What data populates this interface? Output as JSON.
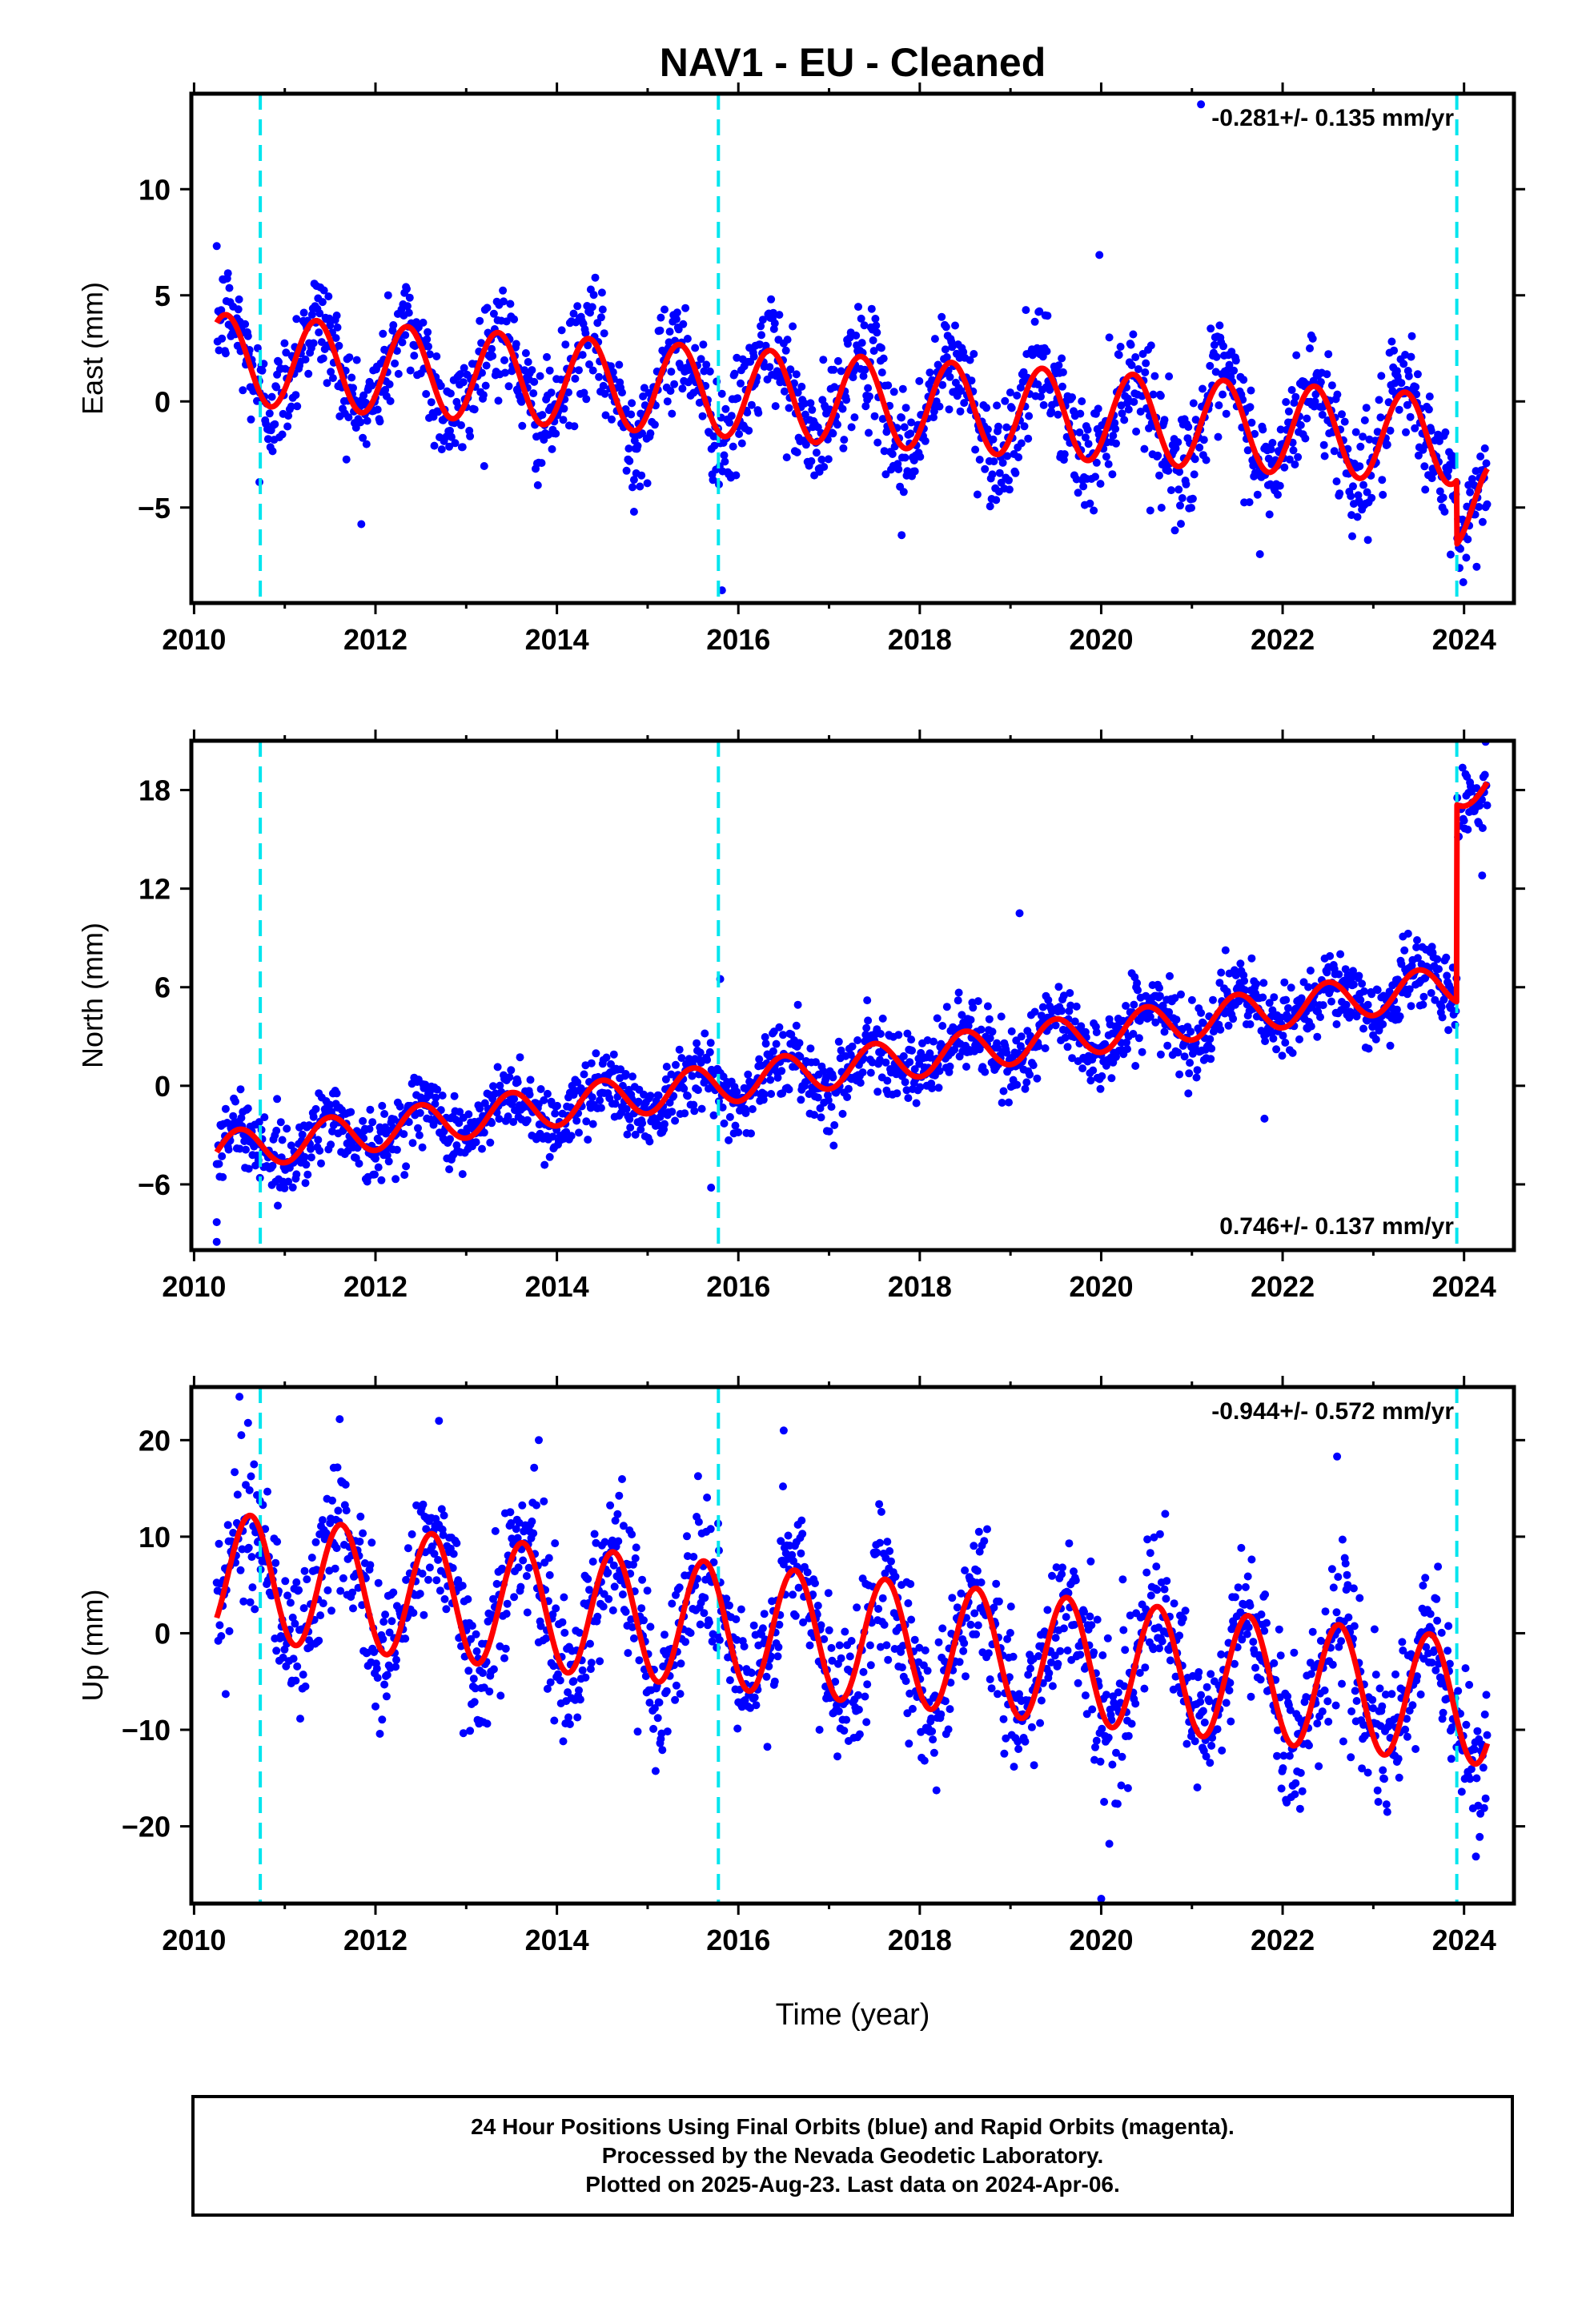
{
  "title": "NAV1  - EU - Cleaned",
  "xlabel": "Time (year)",
  "colors": {
    "data_points": "#0000ff",
    "model_fit": "#ff0000",
    "equipment_change": "#00e5ee",
    "frame": "#000000"
  },
  "chart_data": [
    {
      "type": "scatter",
      "component": "East",
      "ylabel": "East (mm)",
      "rate_label": "-0.281+/- 0.135 mm/yr",
      "rate_label_position": "top-right",
      "xlim": [
        2009.97,
        2024.55
      ],
      "ylim": [
        -9.5,
        14.5
      ],
      "x_ticks": [
        2010,
        2012,
        2014,
        2016,
        2018,
        2020,
        2022,
        2024
      ],
      "y_ticks": [
        -5,
        0,
        5,
        10
      ],
      "y_tick_labels": [
        "−5",
        "0",
        "5",
        "10"
      ],
      "vertical_lines": [
        2010.73,
        2015.78,
        2023.92
      ],
      "data_span": [
        2010.25,
        2024.26
      ],
      "model": {
        "offset": 2.0,
        "trend": -0.281,
        "ref_year": 2010.3,
        "annual_amplitude": 2.1,
        "annual_peak": 0.35,
        "steps": [
          {
            "x": 2023.92,
            "dy": -3.0
          }
        ]
      },
      "scatter_std": 1.3,
      "outliers": [
        [
          2019.98,
          6.9
        ],
        [
          2015.82,
          -8.9
        ],
        [
          2017.8,
          -6.3
        ],
        [
          2014.85,
          -5.2
        ],
        [
          2021.75,
          -7.2
        ],
        [
          2010.72,
          -3.8
        ],
        [
          2021.1,
          14.0
        ]
      ],
      "series": [
        {
          "name": "24 Hour Positions (Final Orbits)",
          "values": "blue daily points"
        },
        {
          "name": "Model fit",
          "values": "red curve"
        }
      ]
    },
    {
      "type": "scatter",
      "component": "North",
      "ylabel": "North (mm)",
      "rate_label": "0.746+/- 0.137 mm/yr",
      "rate_label_position": "bottom-right",
      "xlim": [
        2009.97,
        2024.55
      ],
      "ylim": [
        -10,
        21
      ],
      "x_ticks": [
        2010,
        2012,
        2014,
        2016,
        2018,
        2020,
        2022,
        2024
      ],
      "y_ticks": [
        -6,
        0,
        6,
        12,
        18
      ],
      "y_tick_labels": [
        "−6",
        "0",
        "6",
        "12",
        "18"
      ],
      "vertical_lines": [
        2010.73,
        2015.78,
        2023.92
      ],
      "data_span": [
        2010.25,
        2024.26
      ],
      "model": {
        "offset": -4.0,
        "trend": 0.746,
        "ref_year": 2010.3,
        "annual_amplitude": 1.2,
        "annual_peak": 0.5,
        "steps": [
          {
            "x": 2023.92,
            "dy": 12.0
          }
        ]
      },
      "scatter_std": 1.1,
      "outliers": [
        [
          2019.1,
          10.5
        ],
        [
          2015.8,
          6.5
        ],
        [
          2015.7,
          -6.2
        ],
        [
          2010.25,
          -8.3
        ],
        [
          2010.25,
          -9.5
        ],
        [
          2021.8,
          -2.0
        ],
        [
          2024.2,
          12.8
        ]
      ],
      "series": [
        {
          "name": "24 Hour Positions (Final Orbits)",
          "values": "blue daily points"
        },
        {
          "name": "Model fit",
          "values": "red curve"
        }
      ]
    },
    {
      "type": "scatter",
      "component": "Up",
      "ylabel": "Up (mm)",
      "rate_label": "-0.944+/- 0.572 mm/yr",
      "rate_label_position": "top-right",
      "xlim": [
        2009.97,
        2024.55
      ],
      "ylim": [
        -28,
        25.5
      ],
      "x_ticks": [
        2010,
        2012,
        2014,
        2016,
        2018,
        2020,
        2022,
        2024
      ],
      "y_ticks": [
        -20,
        -10,
        0,
        10,
        20
      ],
      "y_tick_labels": [
        "−20",
        "−10",
        "0",
        "10",
        "20"
      ],
      "vertical_lines": [
        2010.73,
        2015.78,
        2023.92
      ],
      "data_span": [
        2010.25,
        2024.26
      ],
      "model": {
        "offset": 6.0,
        "trend": -0.944,
        "ref_year": 2010.3,
        "annual_amplitude": 6.5,
        "annual_peak": 0.62,
        "steps": []
      },
      "scatter_std": 3.8,
      "outliers": [
        [
          2020.0,
          -27.5
        ],
        [
          2010.5,
          24.5
        ],
        [
          2012.7,
          22.0
        ],
        [
          2022.6,
          18.3
        ],
        [
          2016.5,
          21.0
        ],
        [
          2013.8,
          20.0
        ]
      ],
      "series": [
        {
          "name": "24 Hour Positions (Final Orbits)",
          "values": "blue daily points"
        },
        {
          "name": "Model fit",
          "values": "red curve"
        }
      ]
    }
  ],
  "footer": {
    "line1": "24 Hour Positions Using Final Orbits (blue) and Rapid Orbits (magenta).",
    "line2": "Processed by the Nevada Geodetic Laboratory.",
    "line3": "Plotted on 2025-Aug-23. Last data on 2024-Apr-06."
  }
}
